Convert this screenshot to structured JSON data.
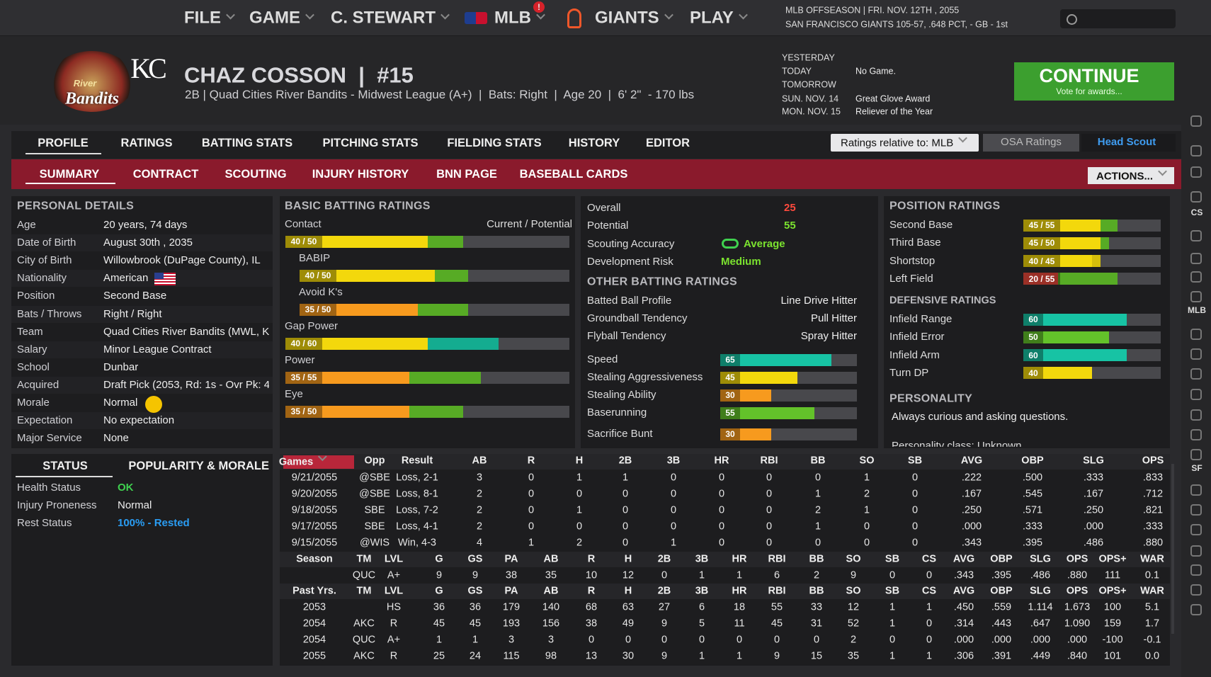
{
  "nav": {
    "menus": [
      "FILE",
      "GAME",
      "C. STEWART",
      "MLB",
      "GIANTS",
      "PLAY"
    ],
    "alert": "!",
    "status": [
      "MLB OFFSEASON  |  FRI. NOV. 12TH , 2055",
      "SAN FRANCISCO GIANTS   105-57, .648 PCT, - GB - 1st"
    ]
  },
  "logo": {
    "team": "River",
    "name": "Bandits",
    "org": "KC"
  },
  "player": {
    "name": "CHAZ COSSON  |  #15",
    "info": "2B | Quad Cities River Bandits - Midwest League (A+)  |  Bats: Right  |  Age 20  |  6' 2\"  - 170 lbs"
  },
  "schedule": [
    {
      "day": "YESTERDAY"
    },
    {
      "day": "TODAY",
      "event": "No Game."
    },
    {
      "day": "TOMORROW"
    },
    {
      "day": "SUN. NOV. 14",
      "event": "Great Glove Award"
    },
    {
      "day": "MON. NOV. 15",
      "event": "Reliever of the Year"
    }
  ],
  "continue": {
    "label": "CONTINUE",
    "hint": "Vote for awards..."
  },
  "tabs": [
    "PROFILE",
    "RATINGS",
    "BATTING STATS",
    "PITCHING STATS",
    "FIELDING STATS",
    "HISTORY",
    "EDITOR"
  ],
  "subtabs": [
    "SUMMARY",
    "CONTRACT",
    "SCOUTING",
    "INJURY HISTORY",
    "BNN PAGE",
    "BASEBALL CARDS"
  ],
  "controls": {
    "ratings_relative": "Ratings relative to: MLB",
    "osa": "OSA Ratings",
    "scout": "Head Scout",
    "actions": "ACTIONS..."
  },
  "personal": {
    "title": "PERSONAL DETAILS",
    "rows": [
      {
        "label": "Age",
        "value": "20 years, 74 days"
      },
      {
        "label": "Date of Birth",
        "value": "August 30th , 2035"
      },
      {
        "label": "City of Birth",
        "value": "Willowbrook (DuPage County), IL"
      },
      {
        "label": "Nationality",
        "value": "American"
      },
      {
        "label": "Position",
        "value": "Second Base"
      },
      {
        "label": "Bats / Throws",
        "value": "Right / Right"
      },
      {
        "label": "Team",
        "value": "Quad Cities River Bandits (MWL, KC"
      },
      {
        "label": "Salary",
        "value": "Minor League Contract"
      },
      {
        "label": "School",
        "value": "Dunbar"
      },
      {
        "label": "Acquired",
        "value": "Draft Pick (2053, Rd: 1s - Ovr Pk: 4"
      },
      {
        "label": "Morale",
        "value": "Normal"
      },
      {
        "label": "Expectation",
        "value": "No expectation"
      },
      {
        "label": "Major Service",
        "value": "None"
      }
    ]
  },
  "status": {
    "tabs": [
      "STATUS",
      "POPULARITY & MORALE"
    ],
    "rows": [
      {
        "label": "Health Status",
        "value": "OK"
      },
      {
        "label": "Injury Proneness",
        "value": "Normal"
      },
      {
        "label": "Rest Status",
        "value": "100% - Rested"
      }
    ]
  },
  "batting": {
    "title": "BASIC BATTING RATINGS",
    "column": "Current / Potential",
    "ratings": [
      {
        "name": "Contact",
        "label": "40 / 50",
        "current": 40,
        "potential": 50
      },
      {
        "name": "BABIP",
        "label": "40 / 50",
        "current": 40,
        "potential": 50
      },
      {
        "name": "Avoid K's",
        "label": "35 / 50",
        "current": 35,
        "potential": 50
      },
      {
        "name": "Gap Power",
        "label": "40 / 60",
        "current": 40,
        "potential": 60
      },
      {
        "name": "Power",
        "label": "35 / 55",
        "current": 35,
        "potential": 55
      },
      {
        "name": "Eye",
        "label": "35 / 50",
        "current": 35,
        "potential": 50
      }
    ]
  },
  "summary": {
    "rows": [
      {
        "label": "Overall",
        "value": 25
      },
      {
        "label": "Potential",
        "value": 55
      },
      {
        "label": "Scouting Accuracy",
        "value": "Average"
      },
      {
        "label": "Development Risk",
        "value": "Medium"
      }
    ]
  },
  "other_batting": {
    "title": "OTHER BATTING RATINGS",
    "rows": [
      {
        "label": "Batted Ball Profile",
        "value": "Line Drive Hitter"
      },
      {
        "label": "Groundball Tendency",
        "value": "Pull Hitter"
      },
      {
        "label": "Flyball Tendency",
        "value": "Spray Hitter"
      }
    ],
    "ratings": [
      {
        "name": "Speed",
        "value": 65
      },
      {
        "name": "Stealing Aggressiveness",
        "value": 45
      },
      {
        "name": "Stealing Ability",
        "value": 30
      },
      {
        "name": "Baserunning",
        "value": 55
      },
      {
        "name": "Sacrifice Bunt",
        "value": 30
      }
    ]
  },
  "position": {
    "title": "POSITION RATINGS",
    "ratings": [
      {
        "name": "Second Base",
        "label": "45 / 55",
        "current": 45,
        "potential": 55
      },
      {
        "name": "Third Base",
        "label": "45 / 50",
        "current": 45,
        "potential": 50
      },
      {
        "name": "Shortstop",
        "label": "40 / 45",
        "current": 40,
        "potential": 45
      },
      {
        "name": "Left Field",
        "label": "20 / 55",
        "current": 20,
        "potential": 55
      }
    ],
    "defense_title": "DEFENSIVE RATINGS",
    "defense": [
      {
        "name": "Infield Range",
        "value": 60
      },
      {
        "name": "Infield Error",
        "value": 50
      },
      {
        "name": "Infield Arm",
        "value": 60
      },
      {
        "name": "Turn DP",
        "value": 40
      }
    ]
  },
  "personality": {
    "title": "PERSONALITY",
    "text": "Always curious and asking questions.",
    "class": "Personality class: Unknown"
  },
  "games": {
    "header": [
      "Games",
      "Opp",
      "Result",
      "AB",
      "R",
      "H",
      "2B",
      "3B",
      "HR",
      "RBI",
      "BB",
      "SO",
      "SB",
      "AVG",
      "OBP",
      "SLG",
      "OPS"
    ],
    "rows": [
      [
        "9/21/2055",
        "@SBE",
        "Loss, 2-1",
        3,
        0,
        1,
        1,
        0,
        0,
        0,
        0,
        1,
        0,
        ".222",
        ".500",
        ".333",
        ".833"
      ],
      [
        "9/20/2055",
        "@SBE",
        "Loss, 8-1",
        2,
        0,
        0,
        0,
        0,
        0,
        0,
        1,
        2,
        0,
        ".167",
        ".545",
        ".167",
        ".712"
      ],
      [
        "9/18/2055",
        "SBE",
        "Loss, 7-2",
        2,
        0,
        1,
        0,
        0,
        0,
        0,
        2,
        1,
        0,
        ".250",
        ".571",
        ".250",
        ".821"
      ],
      [
        "9/17/2055",
        "SBE",
        "Loss, 4-1",
        2,
        0,
        0,
        0,
        0,
        0,
        0,
        1,
        0,
        0,
        ".000",
        ".333",
        ".000",
        ".333"
      ],
      [
        "9/15/2055",
        "@WIS",
        "Win, 4-3",
        4,
        1,
        2,
        0,
        1,
        0,
        0,
        0,
        0,
        0,
        ".343",
        ".395",
        ".486",
        ".880"
      ]
    ]
  },
  "seasons": {
    "header": [
      "Season",
      "TM",
      "LVL",
      "G",
      "GS",
      "PA",
      "AB",
      "R",
      "H",
      "2B",
      "3B",
      "HR",
      "RBI",
      "BB",
      "SO",
      "SB",
      "CS",
      "AVG",
      "OBP",
      "SLG",
      "OPS",
      "OPS+",
      "WAR"
    ],
    "rows": [
      [
        null,
        "QUC",
        "A+",
        9,
        9,
        38,
        35,
        10,
        12,
        0,
        1,
        1,
        6,
        2,
        9,
        0,
        0,
        ".343",
        ".395",
        ".486",
        ".880",
        111,
        "0.1"
      ]
    ]
  },
  "past": {
    "header": [
      "Past Yrs.",
      "TM",
      "LVL",
      "G",
      "GS",
      "PA",
      "AB",
      "R",
      "H",
      "2B",
      "3B",
      "HR",
      "RBI",
      "BB",
      "SO",
      "SB",
      "CS",
      "AVG",
      "OBP",
      "SLG",
      "OPS",
      "OPS+",
      "WAR"
    ],
    "rows": [
      [
        2053,
        null,
        "HS",
        36,
        36,
        179,
        140,
        68,
        63,
        27,
        6,
        18,
        55,
        33,
        12,
        1,
        1,
        ".450",
        ".559",
        "1.114",
        "1.673",
        100,
        "5.1"
      ],
      [
        2054,
        "AKC",
        "R",
        45,
        45,
        193,
        156,
        38,
        49,
        9,
        5,
        11,
        45,
        31,
        52,
        1,
        0,
        ".314",
        ".443",
        ".647",
        "1.090",
        159,
        "1.7"
      ],
      [
        2054,
        "QUC",
        "A+",
        1,
        1,
        3,
        3,
        0,
        0,
        0,
        0,
        0,
        0,
        0,
        2,
        0,
        0,
        ".000",
        ".000",
        ".000",
        ".000",
        -100,
        "-0.1"
      ],
      [
        2055,
        "AKC",
        "R",
        25,
        24,
        115,
        98,
        13,
        30,
        9,
        1,
        1,
        9,
        15,
        35,
        1,
        1,
        ".306",
        ".391",
        ".449",
        ".840",
        101,
        "0.0"
      ]
    ]
  },
  "sidebar": [
    "CS",
    "MLB",
    "SF"
  ]
}
